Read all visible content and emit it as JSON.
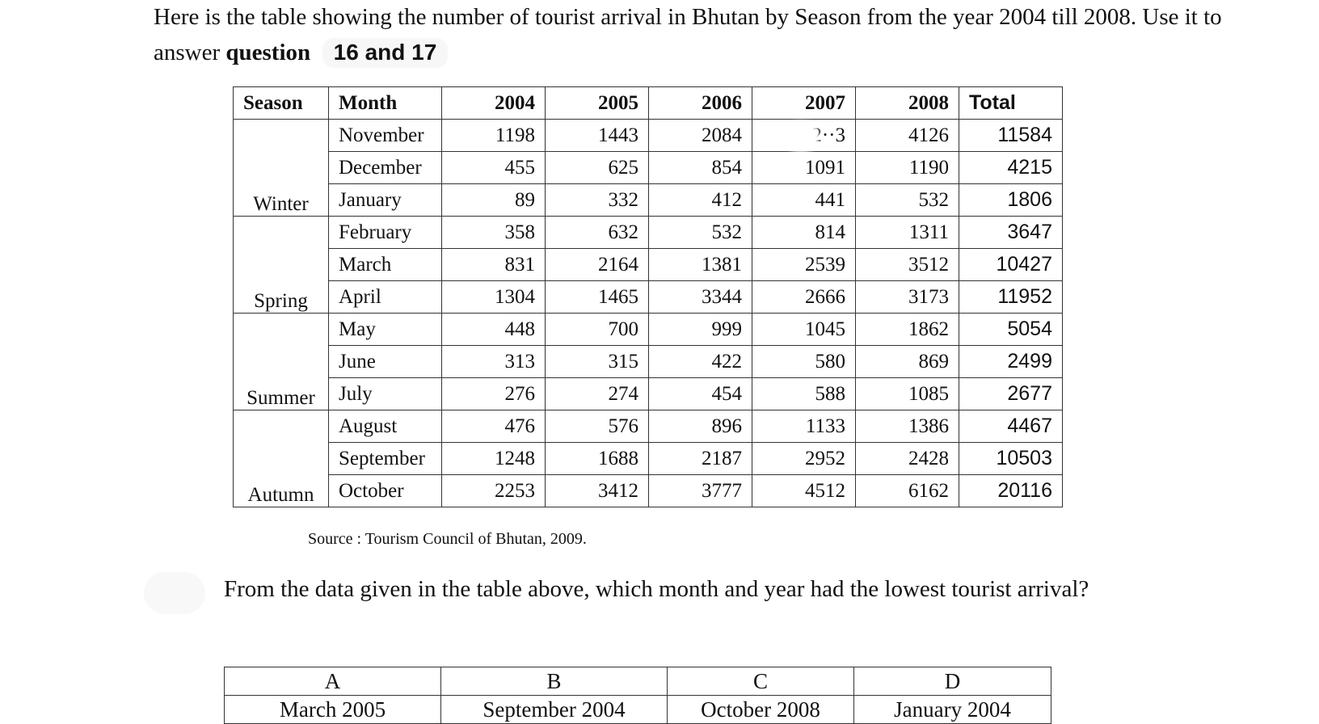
{
  "intro": {
    "text_before": "Here is the table showing the number of tourist arrival in Bhutan by Season from the year 2004 till 2008. Use it to answer ",
    "bold_word": "question",
    "highlight": "16 and 17"
  },
  "table": {
    "headers": [
      "Season",
      "Month",
      "2004",
      "2005",
      "2006",
      "2007",
      "2008",
      "Total"
    ],
    "seasons": [
      "Winter",
      "Spring",
      "Summer",
      "Autumn"
    ],
    "rows": [
      [
        "November",
        "1198",
        "1443",
        "2084",
        "2··3",
        "4126",
        "11584"
      ],
      [
        "December",
        "455",
        "625",
        "854",
        "1091",
        "1190",
        "4215"
      ],
      [
        "January",
        "89",
        "332",
        "412",
        "441",
        "532",
        "1806"
      ],
      [
        "February",
        "358",
        "632",
        "532",
        "814",
        "1311",
        "3647"
      ],
      [
        "March",
        "831",
        "2164",
        "1381",
        "2539",
        "3512",
        "10427"
      ],
      [
        "April",
        "1304",
        "1465",
        "3344",
        "2666",
        "3173",
        "11952"
      ],
      [
        "May",
        "448",
        "700",
        "999",
        "1045",
        "1862",
        "5054"
      ],
      [
        "June",
        "313",
        "315",
        "422",
        "580",
        "869",
        "2499"
      ],
      [
        "July",
        "276",
        "274",
        "454",
        "588",
        "1085",
        "2677"
      ],
      [
        "August",
        "476",
        "576",
        "896",
        "1133",
        "1386",
        "4467"
      ],
      [
        "September",
        "1248",
        "1688",
        "2187",
        "2952",
        "2428",
        "10503"
      ],
      [
        "October",
        "2253",
        "3412",
        "3777",
        "4512",
        "6162",
        "20116"
      ]
    ]
  },
  "source": "Source : Tourism Council of Bhutan, 2009.",
  "question": "From the data given in the table above, which month and year had the lowest tourist arrival?",
  "options": {
    "letters": [
      "A",
      "B",
      "C",
      "D"
    ],
    "answers": [
      "March 2005",
      "September 2004",
      "October 2008",
      "January 2004"
    ]
  }
}
